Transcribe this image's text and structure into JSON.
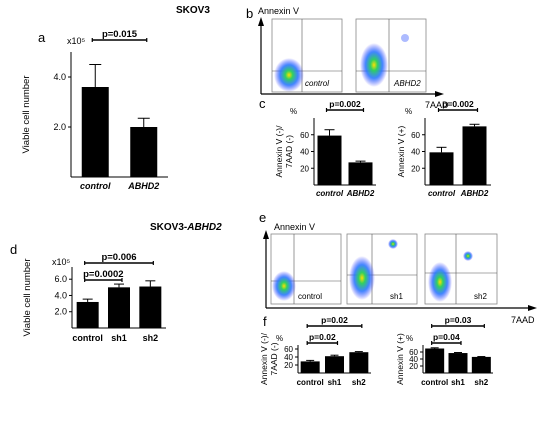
{
  "headings": {
    "top": "SKOV3",
    "bottom_prefix": "SKOV3-",
    "bottom_gene": "ABHD2"
  },
  "panel_letters": {
    "a": "a",
    "b": "b",
    "c": "c",
    "d": "d",
    "e": "e",
    "f": "f"
  },
  "flow": {
    "annexin_label": "Annexin V",
    "aad_label": "7AAD",
    "b_plots": [
      "control",
      "ABHD2"
    ],
    "e_plots": [
      "control",
      "sh1",
      "sh2"
    ]
  },
  "colors": {
    "bar": "#000000",
    "flow_low": "#2a2aff",
    "flow_mid": "#00d060",
    "flow_high": "#ffe000"
  },
  "chart_data": [
    {
      "panel": "a",
      "type": "bar",
      "categories": [
        "control",
        "ABHD2"
      ],
      "values": [
        3.6,
        2.0
      ],
      "errors": [
        0.9,
        0.35
      ],
      "ylabel": "Viable cell number",
      "yunit": "x10⁵",
      "yticks": [
        "2.0",
        "4.0"
      ],
      "ylim": [
        0,
        5
      ],
      "annotations": [
        {
          "text": "p=0.015",
          "between": [
            0,
            1
          ]
        }
      ]
    },
    {
      "panel": "c-left",
      "type": "bar",
      "categories": [
        "control",
        "ABHD2"
      ],
      "values": [
        59,
        27
      ],
      "errors": [
        7,
        1.5
      ],
      "ylabel_line1": "Annexin V (-)/",
      "ylabel_line2": "7AAD (-)",
      "yunit": "%",
      "yticks": [
        "20",
        "40",
        "60"
      ],
      "ylim": [
        0,
        80
      ],
      "annotations": [
        {
          "text": "p=0.002",
          "between": [
            0,
            1
          ]
        }
      ]
    },
    {
      "panel": "c-right",
      "type": "bar",
      "categories": [
        "control",
        "ABHD2"
      ],
      "values": [
        39,
        70
      ],
      "errors": [
        6,
        2.5
      ],
      "ylabel": "Annexin V (+)",
      "yunit": "%",
      "yticks": [
        "20",
        "40",
        "60"
      ],
      "ylim": [
        0,
        80
      ],
      "annotations": [
        {
          "text": "p=0.002",
          "between": [
            0,
            1
          ]
        }
      ]
    },
    {
      "panel": "d",
      "type": "bar",
      "categories": [
        "control",
        "sh1",
        "sh2"
      ],
      "values": [
        3.2,
        5.0,
        5.1
      ],
      "errors": [
        0.35,
        0.4,
        0.7
      ],
      "ylabel": "Viable cell number",
      "yunit": "x10⁵",
      "yticks": [
        "2.0",
        "4.0",
        "6.0"
      ],
      "ylim": [
        0,
        7.5
      ],
      "annotations": [
        {
          "text": "p=0.0002",
          "between": [
            0,
            1
          ]
        },
        {
          "text": "p=0.006",
          "between": [
            0,
            2
          ]
        }
      ]
    },
    {
      "panel": "f-left",
      "type": "bar",
      "categories": [
        "control",
        "sh1",
        "sh2"
      ],
      "values": [
        29,
        42,
        52
      ],
      "errors": [
        2.5,
        2.5,
        1.5
      ],
      "ylabel_line1": "Annexin V (-)/",
      "ylabel_line2": "7AAD (-)",
      "yunit": "%",
      "yticks": [
        "20",
        "40",
        "60"
      ],
      "ylim": [
        0,
        70
      ],
      "annotations": [
        {
          "text": "p=0.02",
          "between": [
            0,
            1
          ]
        },
        {
          "text": "p=0.02",
          "between": [
            0,
            2
          ]
        }
      ]
    },
    {
      "panel": "f-right",
      "type": "bar",
      "categories": [
        "control",
        "sh1",
        "sh2"
      ],
      "values": [
        70,
        57,
        46
      ],
      "errors": [
        2,
        1.5,
        1
      ],
      "ylabel": "Annexin V (+)",
      "yunit": "%",
      "yticks": [
        "20",
        "40",
        "60"
      ],
      "ylim": [
        0,
        80
      ],
      "annotations": [
        {
          "text": "p=0.04",
          "between": [
            0,
            1
          ]
        },
        {
          "text": "p=0.03",
          "between": [
            0,
            2
          ]
        }
      ]
    }
  ]
}
